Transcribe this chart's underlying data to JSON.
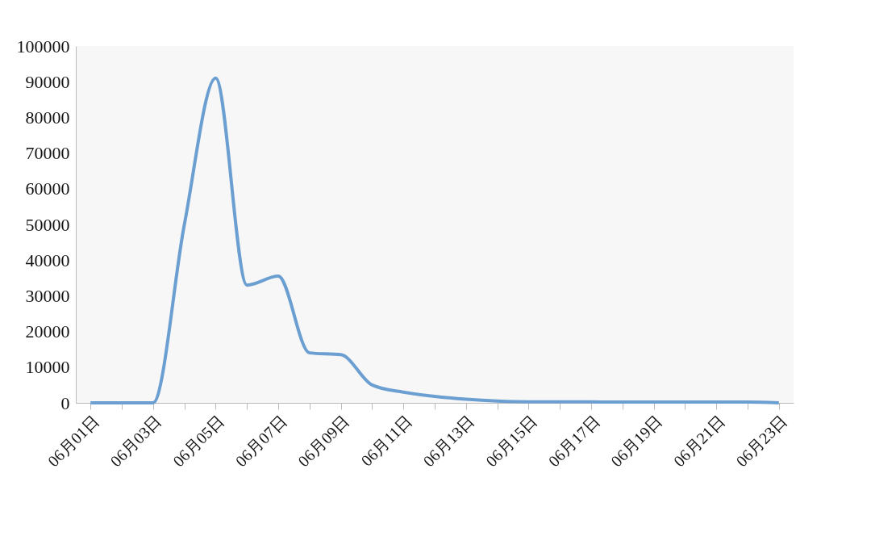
{
  "chart_data": {
    "type": "line",
    "categories": [
      "06月01日",
      null,
      "06月03日",
      null,
      "06月05日",
      null,
      "06月07日",
      null,
      "06月09日",
      null,
      "06月11日",
      null,
      "06月13日",
      null,
      "06月15日",
      null,
      "06月17日",
      null,
      "06月19日",
      null,
      "06月21日",
      null,
      "06月23日"
    ],
    "series": [
      {
        "color": "#6b9fd1",
        "values": [
          0,
          0,
          0,
          50000,
          91000,
          33000,
          35500,
          14000,
          13500,
          5000,
          3000,
          1800,
          1000,
          500,
          300,
          300,
          300,
          200,
          200,
          200,
          200,
          200,
          0
        ]
      }
    ],
    "ylim": [
      0,
      100000
    ],
    "yticks": [
      0,
      10000,
      20000,
      30000,
      40000,
      50000,
      60000,
      70000,
      80000,
      90000,
      100000
    ]
  }
}
